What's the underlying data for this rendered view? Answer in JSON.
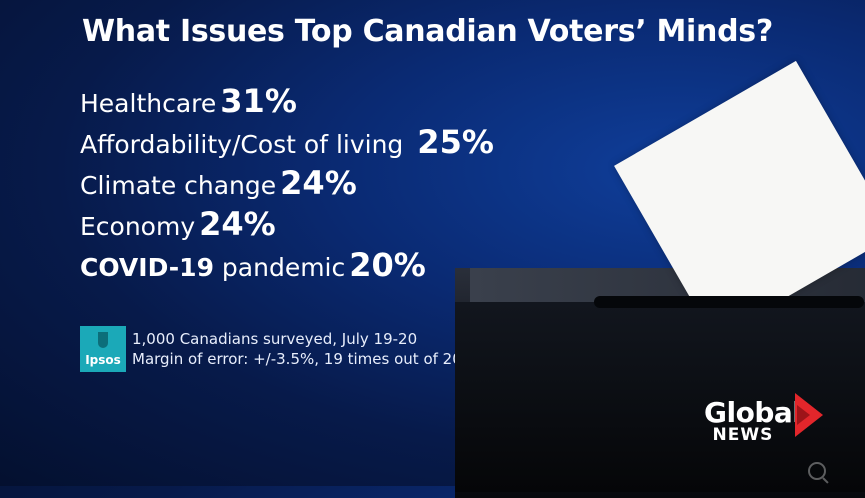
{
  "headline": "What Issues Top Canadian Voters’ Minds?",
  "issues": [
    {
      "name": "Healthcare",
      "pct": "31%"
    },
    {
      "name": "Affordability/Cost of living",
      "pct": "25%"
    },
    {
      "name": "Climate change",
      "pct": "24%"
    },
    {
      "name": "Economy",
      "pct": "24%"
    },
    {
      "name": "COVID-19",
      "name_rest": "pandemic",
      "pct": "20%"
    }
  ],
  "source": {
    "logo_text": "Ipsos",
    "line1": "1,000 Canadians surveyed, July 19-20",
    "line2": "Margin of error: +/-3.5%, 19 times out of 20"
  },
  "broadcaster": {
    "word1": "Global",
    "word2": "NEWS"
  },
  "icons": [
    "ipsos-logo",
    "global-news-arrow-icon",
    "search-icon"
  ]
}
